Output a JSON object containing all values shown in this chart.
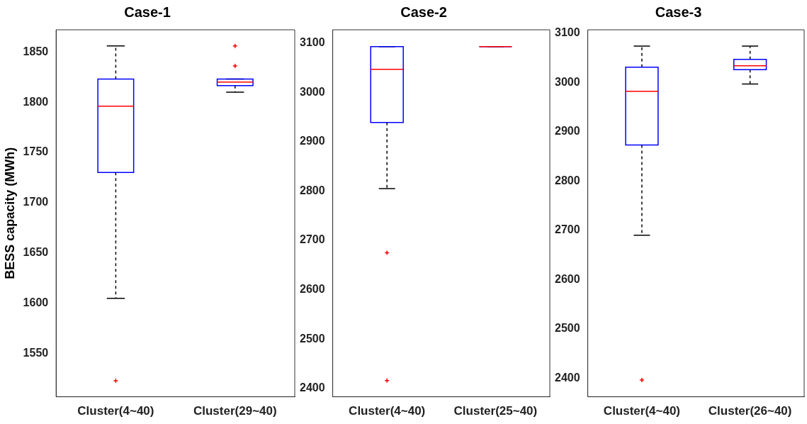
{
  "chart_data": [
    {
      "type": "box",
      "title": "Case-1",
      "ylabel": "BESS capacity (MWh)",
      "categories": [
        "Cluster(4~40)",
        "Cluster(29~40)"
      ],
      "ylim": [
        1507,
        1872
      ],
      "yticks": [
        1550,
        1600,
        1650,
        1700,
        1750,
        1800,
        1850
      ],
      "grid": false,
      "boxes": [
        {
          "low": 1605,
          "q1": 1730,
          "median": 1796,
          "q3": 1823,
          "high": 1856,
          "outliers": [
            1523
          ]
        },
        {
          "low": 1810,
          "q1": 1816.5,
          "median": 1820,
          "q3": 1823,
          "high": 1823,
          "outliers": [
            1836,
            1856
          ]
        }
      ]
    },
    {
      "type": "box",
      "title": "Case-2",
      "categories": [
        "Cluster(4~40)",
        "Cluster(25~40)"
      ],
      "ylim": [
        2383,
        3127
      ],
      "yticks": [
        2400,
        2500,
        2600,
        2700,
        2800,
        2900,
        3000,
        3100
      ],
      "grid": false,
      "boxes": [
        {
          "low": 2805,
          "q1": 2939,
          "median": 3047,
          "q3": 3093,
          "high": 3093,
          "outliers": [
            2675,
            2416
          ]
        },
        {
          "low": 3093,
          "q1": 3093,
          "median": 3093,
          "q3": 3093,
          "high": 3093
        }
      ]
    },
    {
      "type": "box",
      "title": "Case-3",
      "categories": [
        "Cluster(4~40)",
        "Cluster(26~40)"
      ],
      "ylim": [
        2362,
        3107
      ],
      "yticks": [
        2400,
        2500,
        2600,
        2700,
        2800,
        2900,
        3000,
        3100
      ],
      "grid": false,
      "boxes": [
        {
          "low": 2690,
          "q1": 2873,
          "median": 2982,
          "q3": 3031,
          "high": 3074,
          "outliers": [
            2396
          ]
        },
        {
          "low": 2997,
          "q1": 3026,
          "median": 3034,
          "q3": 3047,
          "high": 3074
        }
      ]
    }
  ]
}
